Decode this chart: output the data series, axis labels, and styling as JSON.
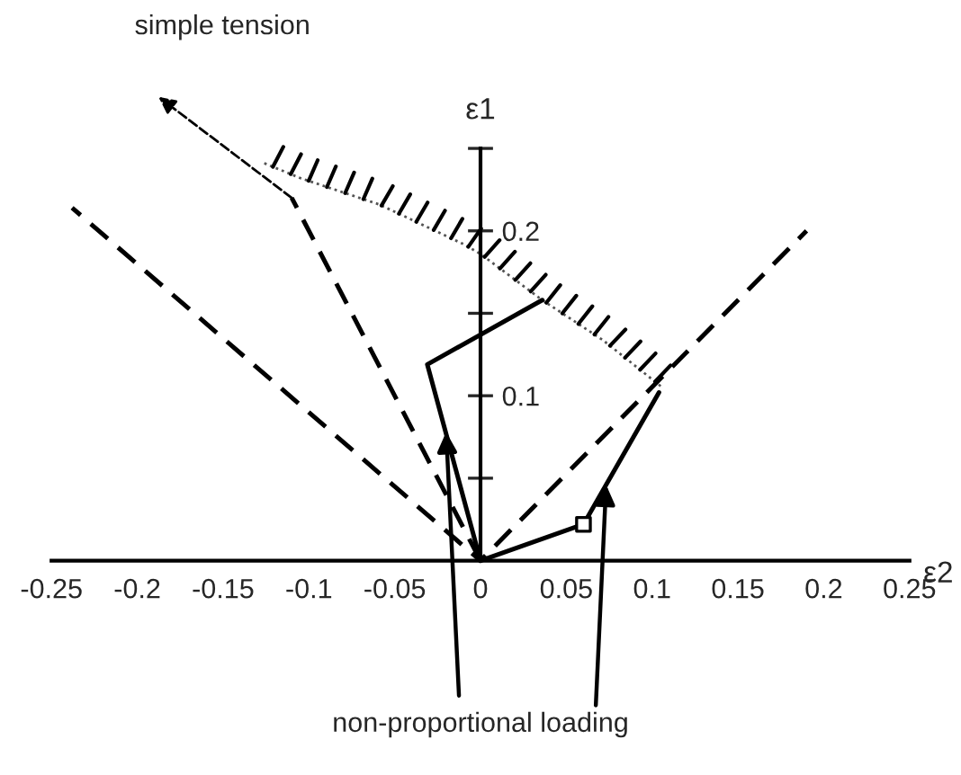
{
  "chart_data": {
    "type": "line",
    "xlabel": "ε2",
    "ylabel": "ε1",
    "xlim": [
      -0.28,
      0.28
    ],
    "ylim": [
      -0.13,
      0.34
    ],
    "xticks": [
      -0.25,
      -0.2,
      -0.15,
      -0.1,
      -0.05,
      0,
      0.05,
      0.1,
      0.15,
      0.2,
      0.25
    ],
    "yticks": [
      {
        "value": 0.05,
        "label": null
      },
      0.1,
      {
        "value": 0.15,
        "label": null
      },
      0.2,
      {
        "value": 0.25,
        "label": null
      }
    ],
    "grid": false,
    "series": [
      {
        "color": "#555555",
        "line_style": "dotted",
        "x": [
          -0.126,
          -0.105,
          -0.059,
          -0.01,
          0.0,
          0.036,
          0.071,
          0.106
        ],
        "values": [
          0.241,
          0.232,
          0.216,
          0.192,
          0.186,
          0.158,
          0.134,
          0.105
        ]
      },
      {
        "color": "#000000",
        "line_style": "dashed",
        "x": [
          0,
          -0.11
        ],
        "values": [
          0,
          0.22
        ]
      },
      {
        "color": "#000000",
        "line_style": "dashed",
        "x": [
          0,
          -0.238
        ],
        "values": [
          0,
          0.214
        ]
      },
      {
        "color": "#000000",
        "line_style": "dashed",
        "x": [
          0,
          0.19
        ],
        "values": [
          0,
          0.2
        ]
      },
      {
        "color": "#000000",
        "line_style": "solid",
        "x": [
          0,
          -0.031,
          0.036
        ],
        "values": [
          0,
          0.119,
          0.158
        ]
      },
      {
        "color": "#000000",
        "line_style": "solid",
        "x": [
          0,
          0.06,
          0.104
        ],
        "values": [
          0,
          0.022,
          0.102
        ]
      },
      {
        "type": "scatter",
        "color": "#000000",
        "marker": "square",
        "x": [
          0.06
        ],
        "values": [
          0.022
        ]
      }
    ],
    "annotations": [
      "simple tension",
      {
        "text": "non-proportional loading",
        "x": -0.02,
        "y": 0.078
      }
    ]
  }
}
